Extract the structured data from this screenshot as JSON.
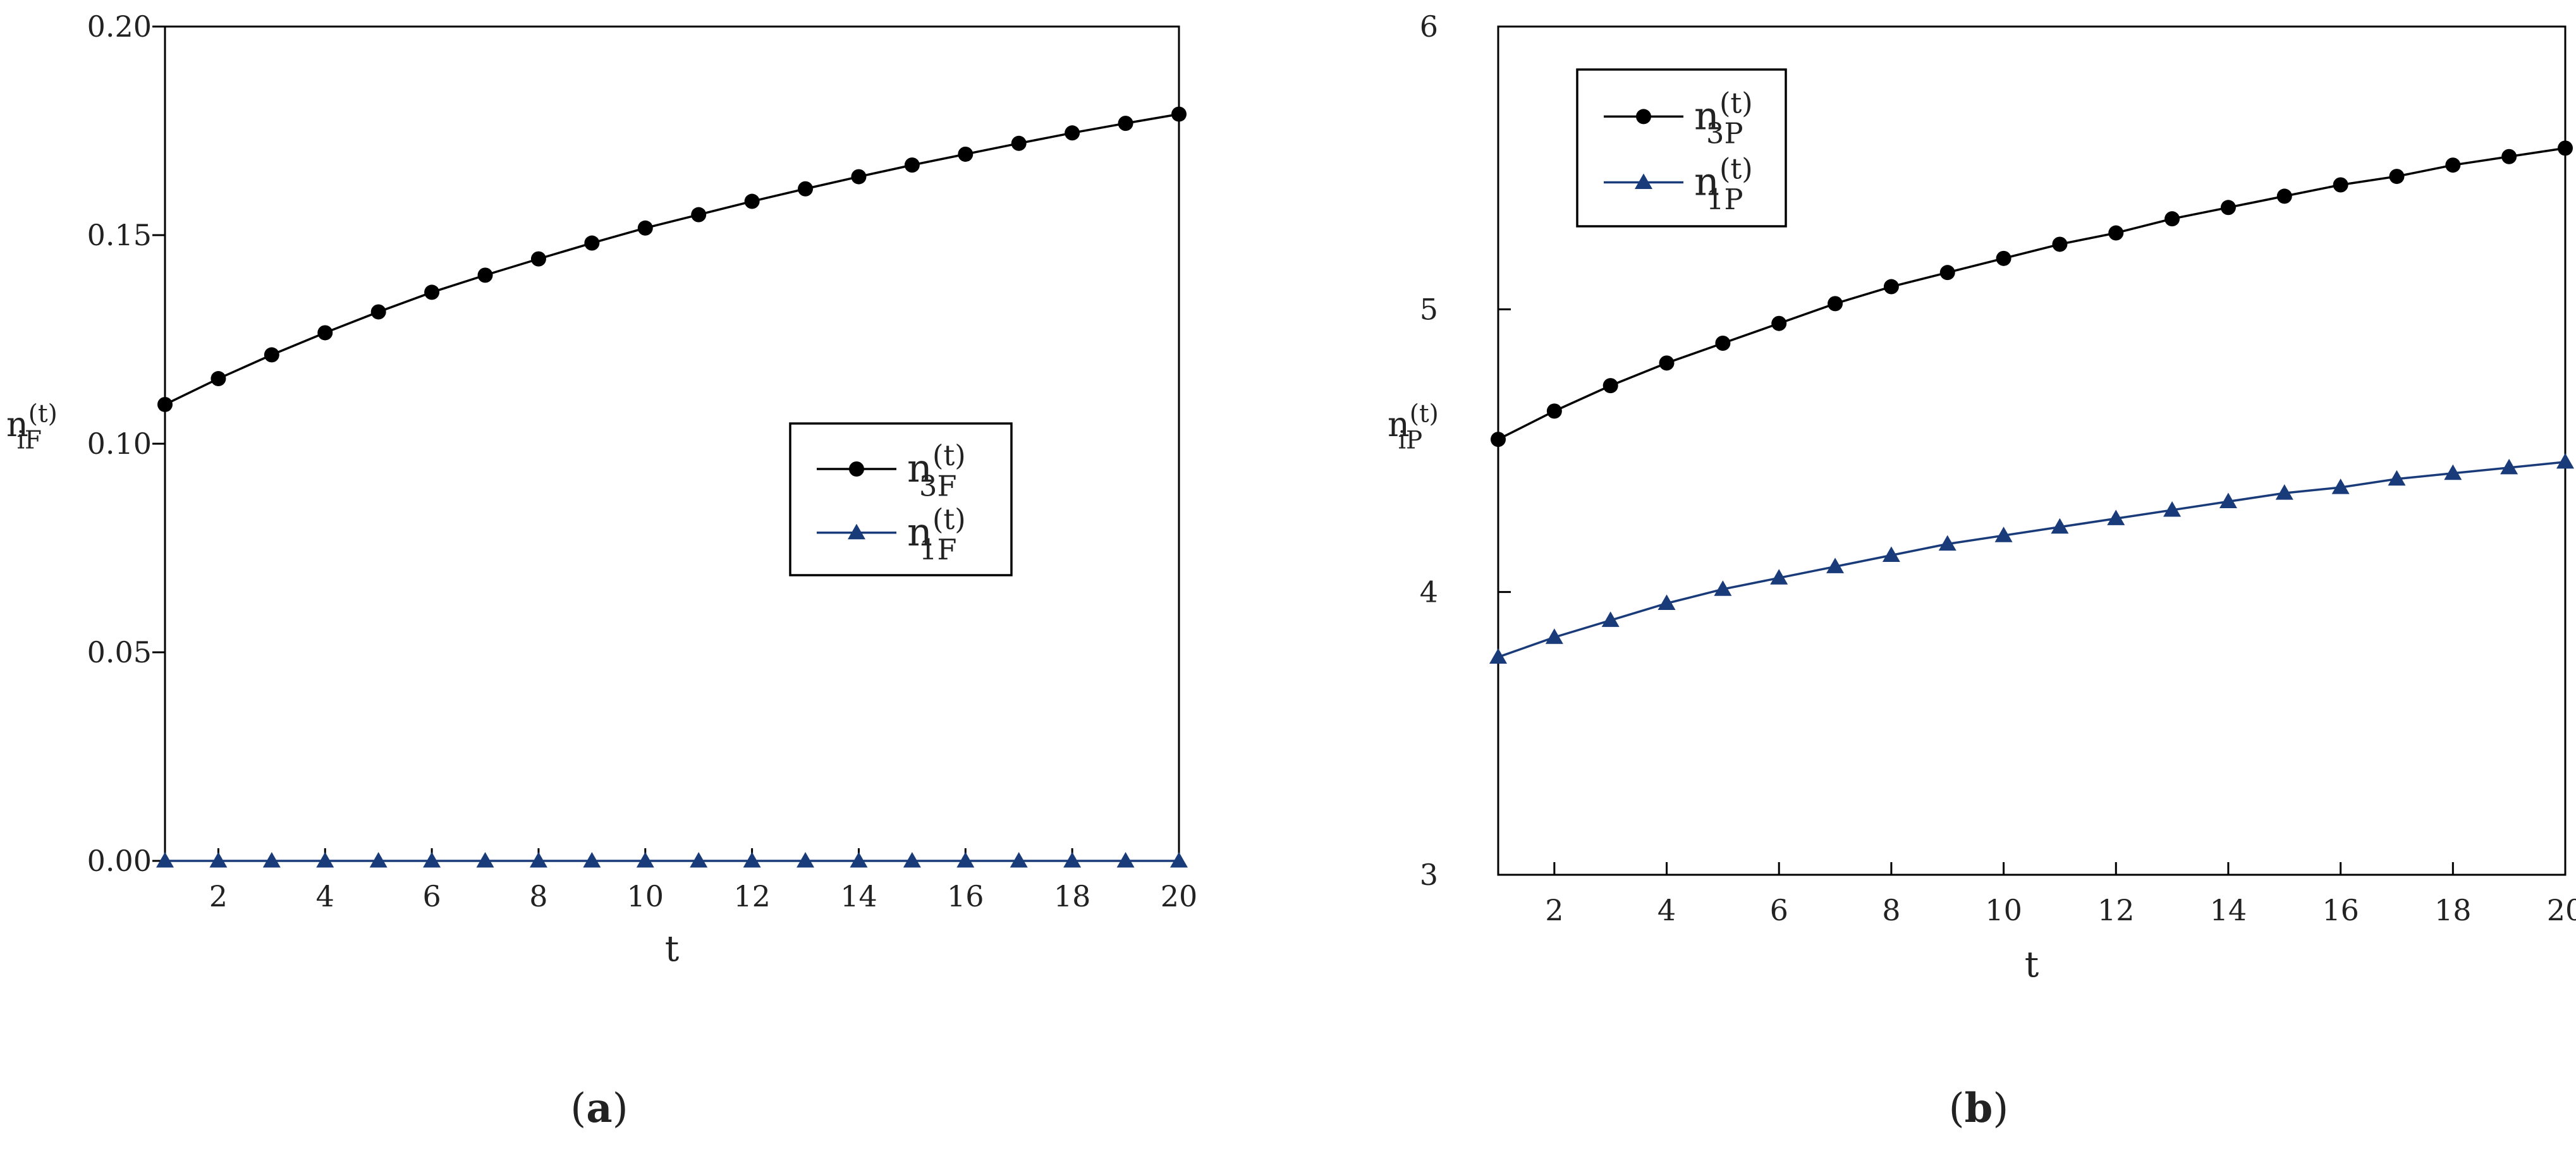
{
  "figure": {
    "captions": [
      {
        "open": "(",
        "letter": "a",
        "close": ")"
      },
      {
        "open": "(",
        "letter": "b",
        "close": ")"
      }
    ]
  },
  "chart_data": [
    {
      "type": "line",
      "panel": "a",
      "title": "",
      "xlabel": "t",
      "ylabel": {
        "base": "n",
        "sub": "iF",
        "sup": "(t)"
      },
      "xlim": [
        1,
        20
      ],
      "ylim": [
        0,
        0.2
      ],
      "xticks": [
        2,
        4,
        6,
        8,
        10,
        12,
        14,
        16,
        18,
        20
      ],
      "yticks": [
        {
          "value": 0,
          "label": "0.00"
        },
        {
          "value": 0.05,
          "label": "0.05"
        },
        {
          "value": 0.1,
          "label": "0.10"
        },
        {
          "value": 0.15,
          "label": "0.15"
        },
        {
          "value": 0.2,
          "label": "0.20"
        }
      ],
      "grid": false,
      "legend_position": "center-right",
      "x": [
        1,
        2,
        3,
        4,
        5,
        6,
        7,
        8,
        9,
        10,
        11,
        12,
        13,
        14,
        15,
        16,
        17,
        18,
        19,
        20
      ],
      "series": [
        {
          "name": {
            "base": "n",
            "sub": "3F",
            "sup": "(t)"
          },
          "color": "#000000",
          "marker": "circle",
          "values": [
            0.1094,
            0.1156,
            0.1213,
            0.1266,
            0.1316,
            0.1363,
            0.1404,
            0.1443,
            0.1481,
            0.1517,
            0.1549,
            0.1581,
            0.1611,
            0.164,
            0.1668,
            0.1694,
            0.172,
            0.1745,
            0.1768,
            0.179
          ]
        },
        {
          "name": {
            "base": "n",
            "sub": "1F",
            "sup": "(t)"
          },
          "color": "#1a3b7a",
          "marker": "triangle",
          "values": [
            0,
            0,
            0,
            0,
            0,
            0,
            0,
            0,
            0,
            0,
            0,
            0,
            0,
            0,
            0,
            0,
            0,
            0,
            0,
            0
          ]
        }
      ]
    },
    {
      "type": "line",
      "panel": "b",
      "title": "",
      "xlabel": "t",
      "ylabel": {
        "base": "n",
        "sub": "iP",
        "sup": "(t)"
      },
      "xlim": [
        1,
        20
      ],
      "ylim": [
        3,
        6
      ],
      "xticks": [
        2,
        4,
        6,
        8,
        10,
        12,
        14,
        16,
        18,
        20
      ],
      "yticks": [
        {
          "value": 3,
          "label": "3"
        },
        {
          "value": 4,
          "label": "4"
        },
        {
          "value": 5,
          "label": "5"
        },
        {
          "value": 6,
          "label": "6"
        }
      ],
      "grid": false,
      "legend_position": "top-left",
      "x": [
        1,
        2,
        3,
        4,
        5,
        6,
        7,
        8,
        9,
        10,
        11,
        12,
        13,
        14,
        15,
        16,
        17,
        18,
        19,
        20
      ],
      "series": [
        {
          "name": {
            "base": "n",
            "sub": "3P",
            "sup": "(t)"
          },
          "color": "#000000",
          "marker": "circle",
          "values": [
            4.54,
            4.64,
            4.73,
            4.81,
            4.88,
            4.95,
            5.02,
            5.08,
            5.13,
            5.18,
            5.23,
            5.27,
            5.32,
            5.36,
            5.4,
            5.44,
            5.47,
            5.51,
            5.54,
            5.57
          ]
        },
        {
          "name": {
            "base": "n",
            "sub": "1P",
            "sup": "(t)"
          },
          "color": "#1a3b7a",
          "marker": "triangle",
          "values": [
            3.77,
            3.84,
            3.9,
            3.96,
            4.01,
            4.05,
            4.09,
            4.13,
            4.17,
            4.2,
            4.23,
            4.26,
            4.29,
            4.32,
            4.35,
            4.37,
            4.4,
            4.42,
            4.44,
            4.46
          ]
        }
      ]
    }
  ]
}
